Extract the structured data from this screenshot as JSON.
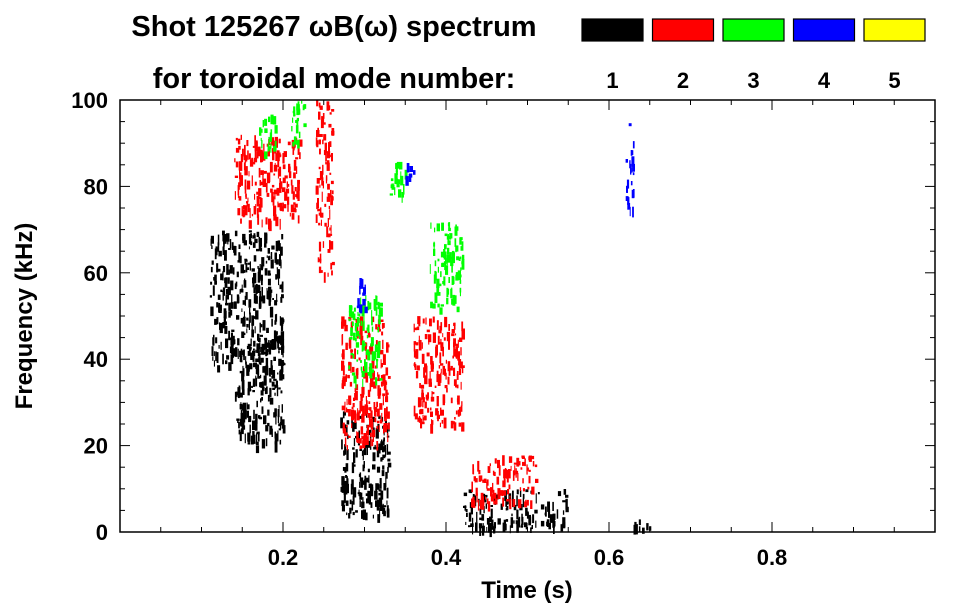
{
  "chart_data": {
    "type": "scatter",
    "title": "Shot 125267 ωB(ω) spectrum",
    "legend_heading": "for toroidal mode number:",
    "xlabel": "Time (s)",
    "ylabel": "Frequency (kHz)",
    "xlim": [
      0.0,
      1.0
    ],
    "ylim": [
      0,
      100
    ],
    "x_ticks": [
      0.2,
      0.4,
      0.6,
      0.8
    ],
    "x_tick_labels": [
      "0.2",
      "0.4",
      "0.6",
      "0.8"
    ],
    "y_ticks": [
      0,
      20,
      40,
      60,
      80,
      100
    ],
    "y_tick_labels": [
      "0",
      "20",
      "40",
      "60",
      "80",
      "100"
    ],
    "legend_position": "top-right",
    "grid": false,
    "series": [
      {
        "name": "1",
        "color": "#000000",
        "regions": [
          {
            "t": [
              0.11,
              0.2
            ],
            "f": [
              38,
              70
            ]
          },
          {
            "t": [
              0.14,
              0.2
            ],
            "f": [
              20,
              45
            ]
          },
          {
            "t": [
              0.27,
              0.33
            ],
            "f": [
              4,
              28
            ]
          },
          {
            "t": [
              0.42,
              0.55
            ],
            "f": [
              1,
              10
            ]
          },
          {
            "t": [
              0.63,
              0.65
            ],
            "f": [
              1,
              3
            ]
          }
        ]
      },
      {
        "name": "2",
        "color": "#ff0000",
        "regions": [
          {
            "t": [
              0.14,
              0.22
            ],
            "f": [
              72,
              92
            ]
          },
          {
            "t": [
              0.24,
              0.26
            ],
            "f": [
              60,
              100
            ]
          },
          {
            "t": [
              0.27,
              0.33
            ],
            "f": [
              20,
              50
            ]
          },
          {
            "t": [
              0.36,
              0.42
            ],
            "f": [
              25,
              50
            ]
          },
          {
            "t": [
              0.43,
              0.51
            ],
            "f": [
              7,
              18
            ]
          }
        ]
      },
      {
        "name": "3",
        "color": "#00ff00",
        "regions": [
          {
            "t": [
              0.17,
              0.19
            ],
            "f": [
              88,
              98
            ]
          },
          {
            "t": [
              0.21,
              0.23
            ],
            "f": [
              90,
              100
            ]
          },
          {
            "t": [
              0.28,
              0.32
            ],
            "f": [
              35,
              55
            ]
          },
          {
            "t": [
              0.33,
              0.35
            ],
            "f": [
              76,
              86
            ]
          },
          {
            "t": [
              0.38,
              0.42
            ],
            "f": [
              52,
              72
            ]
          }
        ]
      },
      {
        "name": "4",
        "color": "#0000ff",
        "regions": [
          {
            "t": [
              0.29,
              0.3
            ],
            "f": [
              52,
              64
            ]
          },
          {
            "t": [
              0.35,
              0.36
            ],
            "f": [
              82,
              86
            ]
          },
          {
            "t": [
              0.62,
              0.63
            ],
            "f": [
              75,
              95
            ]
          }
        ]
      },
      {
        "name": "5",
        "color": "#ffff00",
        "regions": []
      }
    ]
  }
}
